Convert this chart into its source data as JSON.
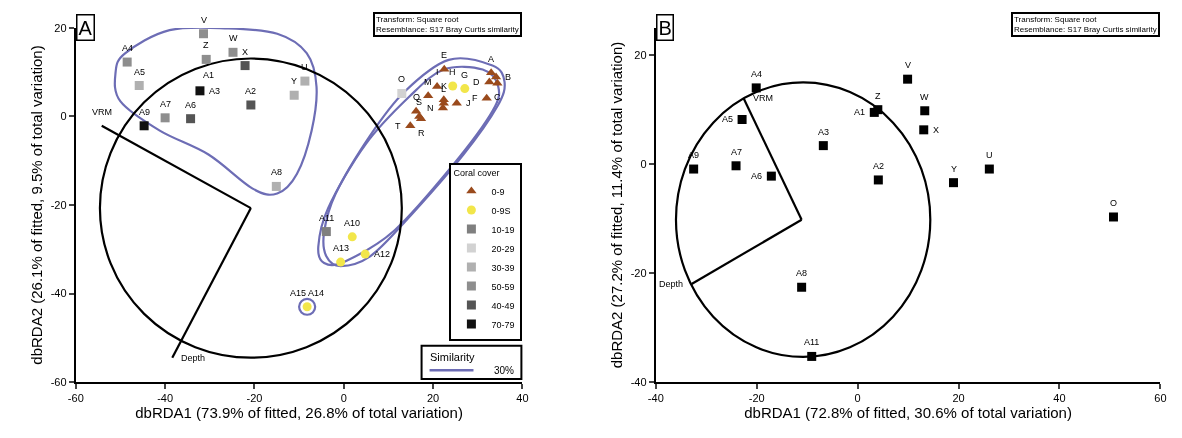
{
  "chart_data": [
    {
      "type": "scatter",
      "xlabel": "dbRDA1 (73.9% of fitted, 26.8% of total variation)",
      "ylabel": "dbRDA2 (26.1% of fitted, 9.5% of total variation)",
      "xlim": [
        -60,
        40
      ],
      "xticks": [
        -60,
        -40,
        -20,
        0,
        20,
        40
      ],
      "ylim": [
        -60,
        20
      ],
      "yticks": [
        -60,
        -40,
        -20,
        0,
        20
      ],
      "grid": false,
      "legend": "bottom right",
      "legend_title": "Coral cover",
      "series": [
        {
          "name": "0-9",
          "marker": "triangle",
          "color": "#9a4a1c",
          "x": [
            22.5,
            33.0,
            34.1,
            34.4,
            32.6,
            32.0,
            20.9,
            18.9,
            22.4,
            22.4,
            22.2,
            25.3,
            16.2,
            16.9,
            17.3,
            14.9
          ],
          "values": [
            10.7,
            9.9,
            8.9,
            7.5,
            7.8,
            4.1,
            6.8,
            4.7,
            3.8,
            3.0,
            1.9,
            3.0,
            1.2,
            0.0,
            -0.5,
            -2.1
          ]
        },
        {
          "name": "0-9S",
          "marker": "circle",
          "color": "#f2e64a",
          "x": [
            24.4,
            27.1,
            1.9,
            4.8,
            -0.7,
            -8.2
          ],
          "values": [
            6.9,
            6.3,
            -27.2,
            -31.1,
            -32.9,
            -43.0
          ]
        },
        {
          "name": "10-19",
          "marker": "square",
          "color": "#7f7f7f",
          "x": [
            -3.9
          ],
          "values": [
            -26.0
          ]
        },
        {
          "name": "20-29",
          "marker": "square",
          "color": "#d2d2d2",
          "x": [
            13.0
          ],
          "values": [
            5.2
          ]
        },
        {
          "name": "30-39",
          "marker": "square",
          "color": "#b0b0b0",
          "x": [
            -8.7,
            -11.1,
            -45.8,
            -15.1
          ],
          "values": [
            8.0,
            4.8,
            7.0,
            -15.8
          ]
        },
        {
          "name": "50-59",
          "marker": "square",
          "color": "#8e8e8e",
          "x": [
            -31.4,
            -48.5,
            -30.8,
            null,
            -24.8,
            -40.0
          ],
          "values": [
            18.7,
            12.3,
            12.9,
            null,
            14.5,
            -0.3
          ]
        },
        {
          "name": "40-49",
          "marker": "square",
          "color": "#555555",
          "x": [
            -22.1,
            -20.8,
            -34.3
          ],
          "values": [
            11.5,
            2.6,
            -0.5
          ]
        },
        {
          "name": "70-79",
          "marker": "square",
          "color": "#111111",
          "x": [
            -32.2,
            -44.7
          ],
          "values": [
            5.8,
            -2.1
          ]
        },
        {
          "type": "line",
          "color": "#000000",
          "x": [
            -54.2,
            -20.8
          ],
          "values": [
            -2.1,
            -20.7
          ]
        },
        {
          "type": "line",
          "color": "#000000",
          "x": [
            -38.4,
            -20.8
          ],
          "values": [
            -54.5,
            -20.7
          ]
        }
      ],
      "annotations": [
        "A",
        "Transform: Square root\nResemblance: S17 Bray Curtis similarity",
        "Similarity",
        "30%",
        {
          "text": "E",
          "x": 22.5,
          "y": 10.7
        },
        {
          "text": "A",
          "x": 33.0,
          "y": 9.9
        },
        {
          "text": "B",
          "x": 34.1,
          "y": 8.9
        },
        {
          "text": "C",
          "x": 34.4,
          "y": 7.5
        },
        {
          "text": "D",
          "x": 32.6,
          "y": 7.8
        },
        {
          "text": "F",
          "x": 32.0,
          "y": 4.1
        },
        {
          "text": "I",
          "x": 20.9,
          "y": 6.8
        },
        {
          "text": "M",
          "x": 18.9,
          "y": 4.7
        },
        {
          "text": "K",
          "x": 22.4,
          "y": 3.8
        },
        {
          "text": "L",
          "x": 22.4,
          "y": 3.0
        },
        {
          "text": "N",
          "x": 22.2,
          "y": 1.9
        },
        {
          "text": "J",
          "x": 25.3,
          "y": 3.0
        },
        {
          "text": "Q",
          "x": 16.2,
          "y": 1.2
        },
        {
          "text": "S",
          "x": 16.9,
          "y": 0.0
        },
        {
          "text": "R",
          "x": 17.3,
          "y": -0.5
        },
        {
          "text": "T",
          "x": 14.9,
          "y": -2.1
        },
        {
          "text": "H",
          "x": 24.4,
          "y": 6.9
        },
        {
          "text": "G",
          "x": 27.1,
          "y": 6.3
        },
        {
          "text": "A10",
          "x": 1.9,
          "y": -27.2
        },
        {
          "text": "A12",
          "x": 4.8,
          "y": -31.1
        },
        {
          "text": "A13",
          "x": -0.7,
          "y": -32.9
        },
        {
          "text": "A15 A14",
          "x": -8.2,
          "y": -43.0
        },
        {
          "text": "A11",
          "x": -3.9,
          "y": -26.0
        },
        {
          "text": "O",
          "x": 13.0,
          "y": 5.2
        },
        {
          "text": "U",
          "x": -8.7,
          "y": 8.0
        },
        {
          "text": "Y",
          "x": -11.1,
          "y": 4.8
        },
        {
          "text": "A5",
          "x": -45.8,
          "y": 7.0
        },
        {
          "text": "A8",
          "x": -15.1,
          "y": -15.8
        },
        {
          "text": "V",
          "x": -31.4,
          "y": 18.7
        },
        {
          "text": "A4",
          "x": -48.5,
          "y": 12.3
        },
        {
          "text": "Z",
          "x": -30.8,
          "y": 12.9
        },
        {
          "text": "A1",
          "x": -30.2,
          "y": 12.5
        },
        {
          "text": "W",
          "x": -24.8,
          "y": 14.5
        },
        {
          "text": "A7",
          "x": -40.0,
          "y": -0.3
        },
        {
          "text": "X",
          "x": -22.1,
          "y": 11.5
        },
        {
          "text": "A2",
          "x": -20.8,
          "y": 2.6
        },
        {
          "text": "A6",
          "x": -34.3,
          "y": -0.5
        },
        {
          "text": "A3",
          "x": -32.2,
          "y": 5.8
        },
        {
          "text": "A9",
          "x": -44.7,
          "y": -2.1
        },
        {
          "text": "VRM",
          "x": -54.2,
          "y": -2.1
        },
        {
          "text": "Depth",
          "x": -38.4,
          "y": -54.5
        }
      ]
    },
    {
      "type": "scatter",
      "xlabel": "dbRDA1 (72.8% of fitted, 30.6% of total variation)",
      "ylabel": "dbRDA2 (27.2% of fitted, 11.4% of total variation)",
      "xlim": [
        -40,
        60
      ],
      "xticks": [
        -40,
        -20,
        0,
        20,
        40,
        60
      ],
      "ylim": [
        -40,
        25
      ],
      "yticks": [
        -40,
        -20,
        0,
        20
      ],
      "grid": false,
      "series": [
        {
          "marker": "square",
          "color": "#000000",
          "x": [
            -20.1,
            -22.9,
            3.3,
            4.0,
            -6.8,
            -32.5,
            -24.1,
            -17.1,
            4.1,
            9.9,
            13.3,
            13.1,
            26.1,
            19.0,
            50.7,
            -11.1,
            -9.1
          ],
          "values": [
            14.0,
            8.2,
            9.5,
            10.0,
            3.4,
            -0.9,
            -0.3,
            -2.2,
            -2.9,
            15.6,
            9.8,
            6.3,
            -0.9,
            -3.4,
            -9.7,
            -22.6,
            -35.3
          ]
        },
        {
          "type": "line",
          "color": "#000000",
          "x": [
            -22.6,
            -11.1
          ],
          "values": [
            12.1,
            -10.2
          ]
        },
        {
          "type": "line",
          "color": "#000000",
          "x": [
            -32.9,
            -11.1
          ],
          "values": [
            -22.0,
            -10.2
          ]
        }
      ],
      "annotations": [
        "B",
        "Transform: Square root\nResemblance: S17 Bray Curtis similarity",
        {
          "text": "A4",
          "x": -20.1,
          "y": 14.0
        },
        {
          "text": "A5",
          "x": -22.9,
          "y": 8.2
        },
        {
          "text": "A1",
          "x": 3.3,
          "y": 9.5
        },
        {
          "text": "Z",
          "x": 4.0,
          "y": 10.0
        },
        {
          "text": "A3",
          "x": -6.8,
          "y": 3.4
        },
        {
          "text": "A9",
          "x": -32.5,
          "y": -0.9
        },
        {
          "text": "A7",
          "x": -24.1,
          "y": -0.3
        },
        {
          "text": "A6",
          "x": -17.1,
          "y": -2.2
        },
        {
          "text": "A2",
          "x": 4.1,
          "y": -2.9
        },
        {
          "text": "V",
          "x": 9.9,
          "y": 15.6
        },
        {
          "text": "W",
          "x": 13.3,
          "y": 9.8
        },
        {
          "text": "X",
          "x": 13.1,
          "y": 6.3
        },
        {
          "text": "U",
          "x": 26.1,
          "y": -0.9
        },
        {
          "text": "Y",
          "x": 19.0,
          "y": -3.4
        },
        {
          "text": "O",
          "x": 50.7,
          "y": -9.7
        },
        {
          "text": "A8",
          "x": -11.1,
          "y": -22.6
        },
        {
          "text": "A11",
          "x": -9.1,
          "y": -35.3
        },
        {
          "text": "VRM",
          "x": -22.6,
          "y": 12.1
        },
        {
          "text": "Depth",
          "x": -32.9,
          "y": -22.0
        }
      ]
    }
  ]
}
